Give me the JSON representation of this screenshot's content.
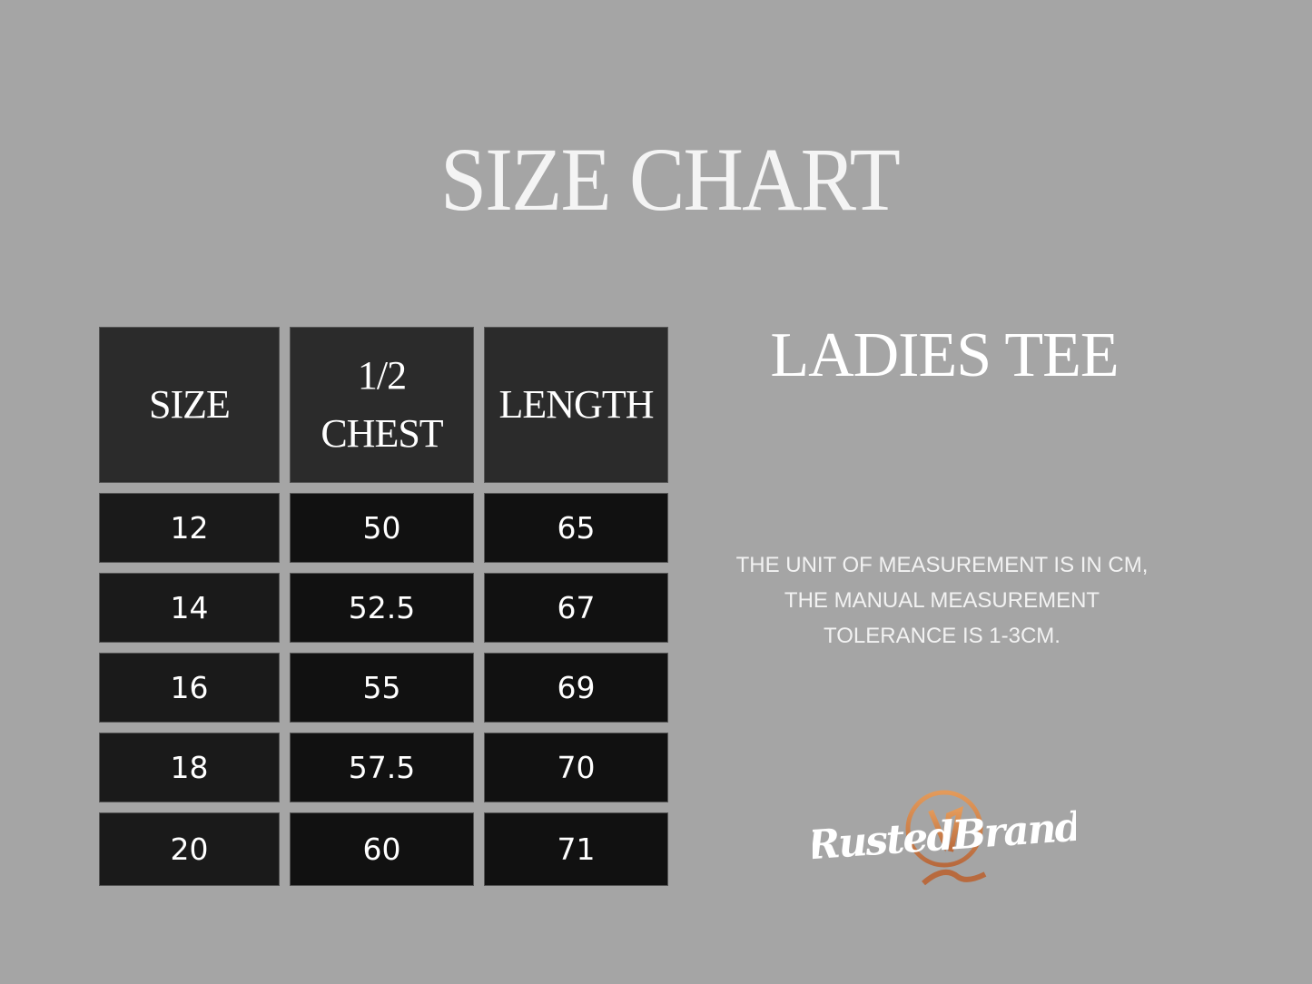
{
  "title": "SIZE CHART",
  "product": "LADIES TEE",
  "note": "THE UNIT OF MEASUREMENT IS IN CM, THE MANUAL MEASUREMENT TOLERANCE IS 1-3CM.",
  "table": {
    "headers": [
      "SIZE",
      "1/2 CHEST",
      "LENGTH"
    ],
    "rows": [
      [
        "12",
        "50",
        "65"
      ],
      [
        "14",
        "52.5",
        "67"
      ],
      [
        "16",
        "55",
        "69"
      ],
      [
        "18",
        "57.5",
        "70"
      ],
      [
        "20",
        "60",
        "71"
      ]
    ]
  },
  "logo": {
    "text": "RustedBrand",
    "accent_color": "#d98a4e"
  },
  "colors": {
    "background": "#a5a5a5",
    "header_cell": "#2b2b2b",
    "body_cell": "#111111"
  }
}
